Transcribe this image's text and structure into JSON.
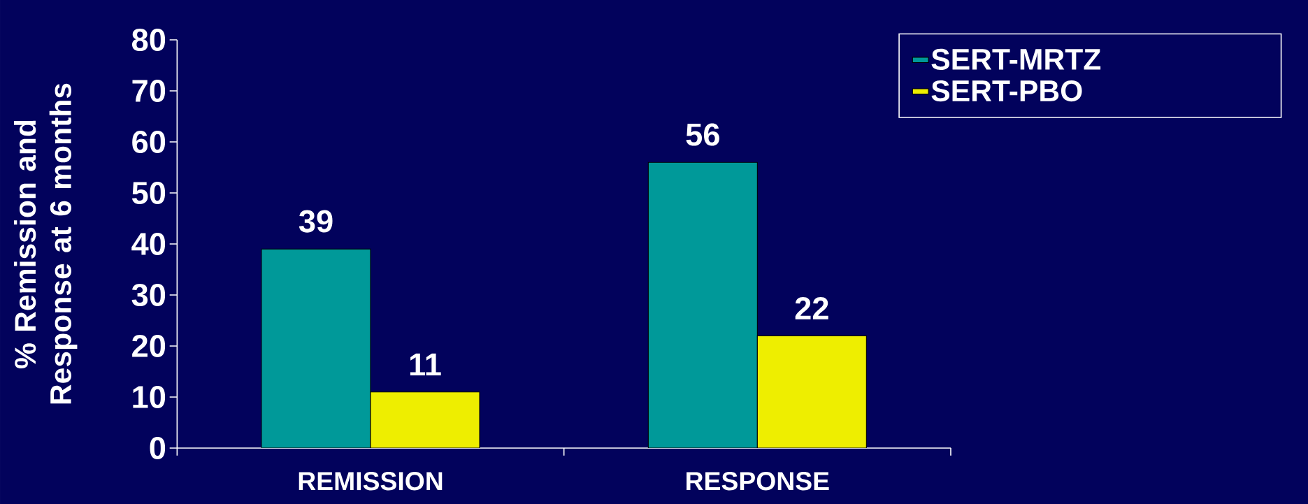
{
  "chart_data": {
    "type": "bar",
    "ylabel": "% Remission and Response at 6 months",
    "categories": [
      "REMISSION",
      "RESPONSE"
    ],
    "series": [
      {
        "name": "SERT-MRTZ",
        "color": "#009999",
        "values": [
          39,
          56
        ]
      },
      {
        "name": "SERT-PBO",
        "color": "#eeee00",
        "values": [
          11,
          22
        ]
      }
    ],
    "ylim": [
      0,
      80
    ],
    "yticks": [
      0,
      10,
      20,
      30,
      40,
      50,
      60,
      70,
      80
    ],
    "data_labels": true,
    "legend": "top right"
  }
}
